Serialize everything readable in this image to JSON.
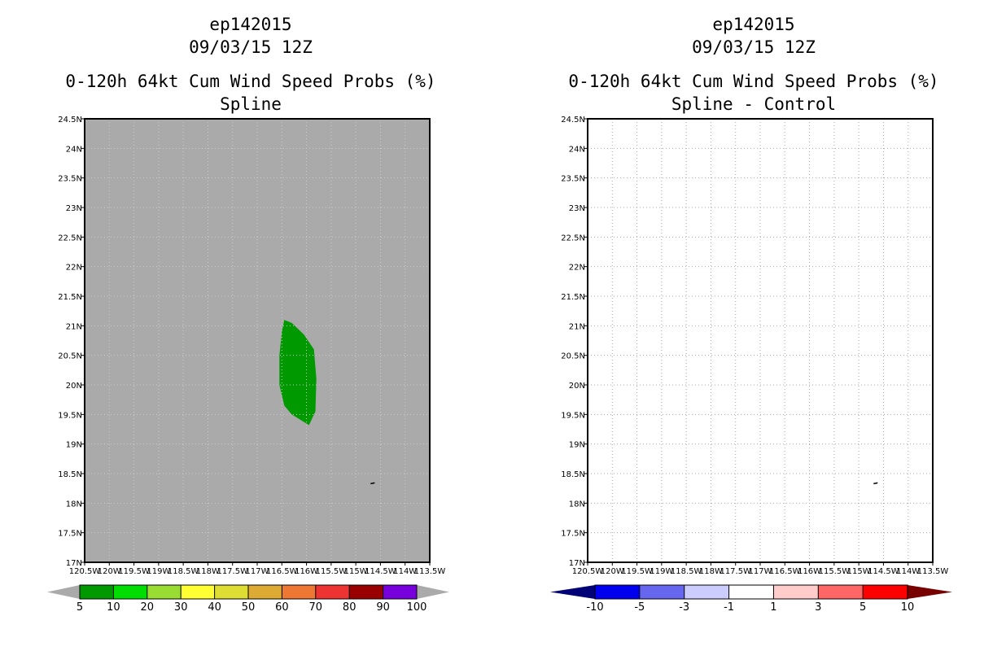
{
  "chart_data": [
    {
      "type": "heatmap",
      "id": "left",
      "title_lines": [
        "ep142015",
        "09/03/15 12Z",
        "",
        "0-120h 64kt Cum Wind Speed Probs (%)",
        "Spline"
      ],
      "x_ticks": [
        "120.5W",
        "120W",
        "119.5W",
        "119W",
        "118.5W",
        "118W",
        "117.5W",
        "117W",
        "116.5W",
        "116W",
        "115.5W",
        "115W",
        "114.5W",
        "114W",
        "113.5W"
      ],
      "y_ticks": [
        "17N",
        "17.5N",
        "18N",
        "18.5N",
        "19N",
        "19.5N",
        "20N",
        "20.5N",
        "21N",
        "21.5N",
        "22N",
        "22.5N",
        "23N",
        "23.5N",
        "24N",
        "24.5N"
      ],
      "xlim": [
        -120.5,
        -113.5
      ],
      "ylim": [
        17,
        24.5
      ],
      "background": "#aaaaaa",
      "grid": true,
      "regions": [
        {
          "name": "5-10 %",
          "color": "#009900",
          "polygon": [
            [
              -116.45,
              21.1
            ],
            [
              -116.3,
              21.05
            ],
            [
              -116.05,
              20.85
            ],
            [
              -115.85,
              20.6
            ],
            [
              -115.8,
              20.1
            ],
            [
              -115.82,
              19.55
            ],
            [
              -115.95,
              19.32
            ],
            [
              -116.3,
              19.5
            ],
            [
              -116.45,
              19.65
            ],
            [
              -116.55,
              20.0
            ],
            [
              -116.55,
              20.5
            ],
            [
              -116.5,
              20.9
            ]
          ]
        }
      ],
      "colorbar": {
        "ticks": [
          "5",
          "10",
          "20",
          "30",
          "40",
          "50",
          "60",
          "70",
          "80",
          "90",
          "100"
        ],
        "colors": [
          "#009900",
          "#00dd00",
          "#99dd33",
          "#ffff33",
          "#dddd33",
          "#ddaa33",
          "#ee7733",
          "#ee3333",
          "#990000",
          "#7700dd"
        ],
        "end_colors": [
          "#aaaaaa",
          "#aaaaaa"
        ]
      }
    },
    {
      "type": "heatmap",
      "id": "right",
      "title_lines": [
        "ep142015",
        "09/03/15 12Z",
        "",
        "0-120h 64kt Cum Wind Speed Probs (%)",
        "Spline - Control"
      ],
      "x_ticks": [
        "120.5W",
        "120W",
        "119.5W",
        "119W",
        "118.5W",
        "118W",
        "117.5W",
        "117W",
        "116.5W",
        "116W",
        "115.5W",
        "115W",
        "114.5W",
        "114W",
        "113.5W"
      ],
      "y_ticks": [
        "17N",
        "17.5N",
        "18N",
        "18.5N",
        "19N",
        "19.5N",
        "20N",
        "20.5N",
        "21N",
        "21.5N",
        "22N",
        "22.5N",
        "23N",
        "23.5N",
        "24N",
        "24.5N"
      ],
      "xlim": [
        -120.5,
        -113.5
      ],
      "ylim": [
        17,
        24.5
      ],
      "background": "#ffffff",
      "grid": true,
      "regions": [],
      "colorbar": {
        "ticks": [
          "-10",
          "-5",
          "-3",
          "-1",
          "1",
          "3",
          "5",
          "10"
        ],
        "colors": [
          "#0000ee",
          "#6666ee",
          "#ccccff",
          "#ffffff",
          "#ffcccc",
          "#ff6666",
          "#ff0000"
        ],
        "end_colors": [
          "#000077",
          "#770000"
        ]
      }
    }
  ]
}
